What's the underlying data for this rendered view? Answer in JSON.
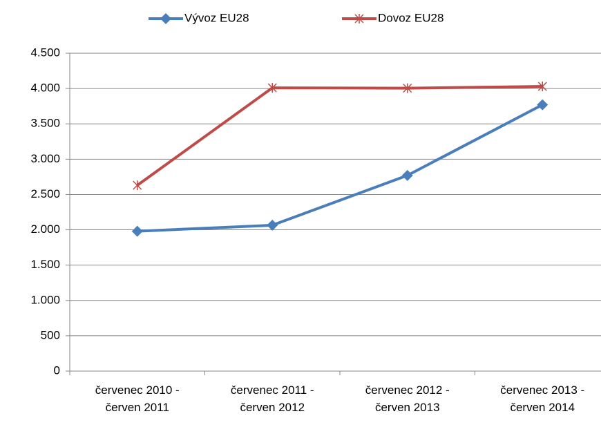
{
  "chart_data": {
    "type": "line",
    "categories": [
      "červenec 2010 -\nčerven 2011",
      "červenec 2011 -\nčerven 2012",
      "červenec 2012 -\nčerven 2013",
      "červenec 2013 -\nčerven 2014"
    ],
    "series": [
      {
        "name": "Vývoz EU28",
        "color": "#4a7ebb",
        "marker": "diamond",
        "values": [
          1980,
          2065,
          2770,
          3770
        ]
      },
      {
        "name": "Dovoz EU28",
        "color": "#be4b48",
        "marker": "star",
        "values": [
          2630,
          4010,
          4005,
          4030
        ]
      }
    ],
    "ylim": [
      0,
      4500
    ],
    "yticks": [
      0,
      500,
      {
        "value": 1000,
        "label": "1.000"
      },
      {
        "value": 1500,
        "label": "1.500"
      },
      {
        "value": 2000,
        "label": "2.000"
      },
      {
        "value": 2500,
        "label": "2.500"
      },
      {
        "value": 3000,
        "label": "3.000"
      },
      {
        "value": 3500,
        "label": "3.500"
      },
      {
        "value": 4000,
        "label": "4.000"
      },
      {
        "value": 4500,
        "label": "4.500"
      }
    ],
    "grid": true,
    "legend": "top"
  }
}
